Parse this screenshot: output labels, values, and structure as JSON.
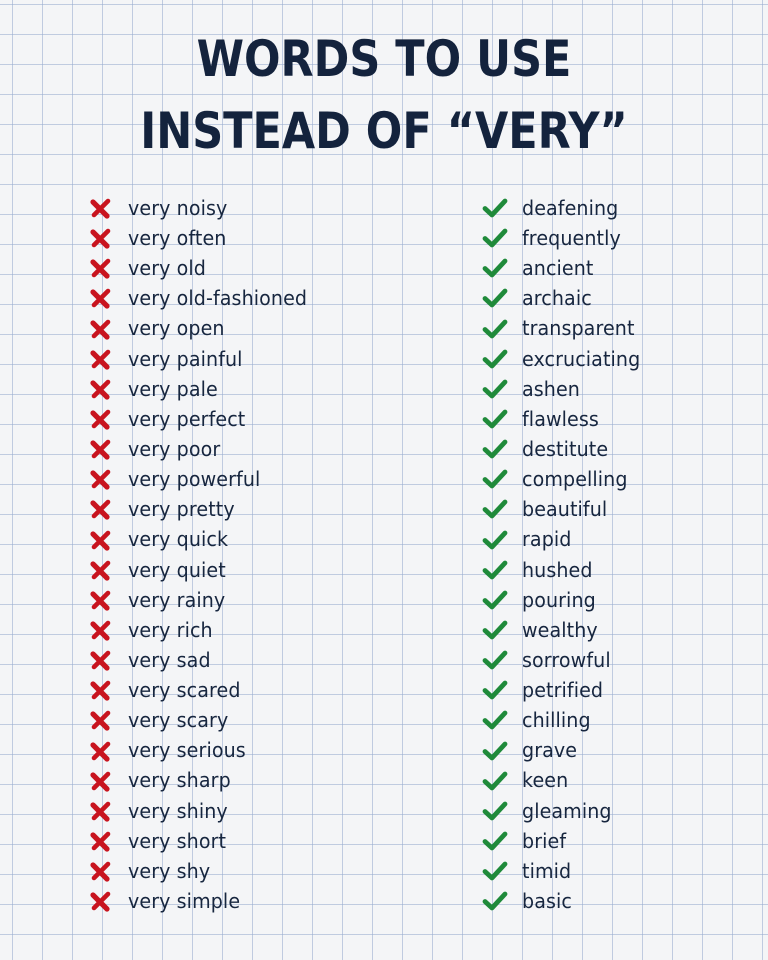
{
  "title": {
    "line1": "WORDS TO USE",
    "line2": "INSTEAD OF “VERY”"
  },
  "colors": {
    "title": "#14233d",
    "text": "#17263f",
    "cross": "#c8141f",
    "check": "#1f8a3a",
    "grid": "#96aacd",
    "paper": "#f4f5f7"
  },
  "icons": {
    "avoid": "red-cross-icon",
    "use": "green-check-icon"
  },
  "avoid_list": [
    "very noisy",
    "very often",
    "very old",
    "very old-fashioned",
    "very open",
    "very painful",
    "very pale",
    "very perfect",
    "very poor",
    "very powerful",
    "very pretty",
    "very quick",
    "very quiet",
    "very rainy",
    "very rich",
    "very sad",
    "very scared",
    "very scary",
    "very serious",
    "very sharp",
    "very shiny",
    "very short",
    "very shy",
    "very simple"
  ],
  "use_list": [
    "deafening",
    "frequently",
    "ancient",
    "archaic",
    "transparent",
    "excruciating",
    "ashen",
    "flawless",
    "destitute",
    "compelling",
    "beautiful",
    "rapid",
    "hushed",
    "pouring",
    "wealthy",
    "sorrowful",
    "petrified",
    "chilling",
    "grave",
    "keen",
    "gleaming",
    "brief",
    "timid",
    "basic"
  ]
}
